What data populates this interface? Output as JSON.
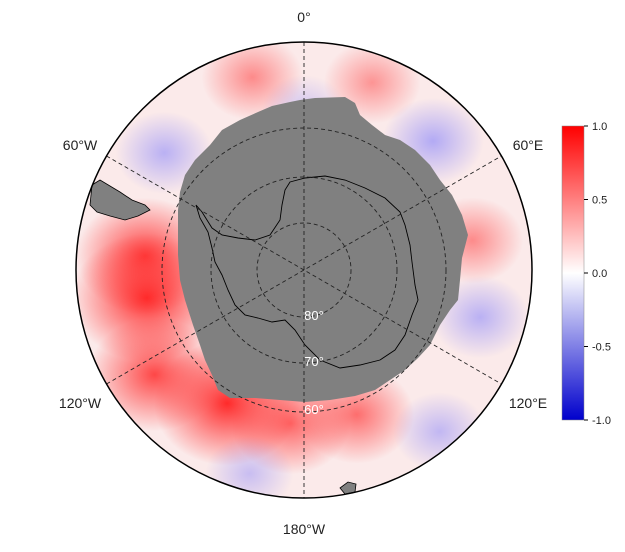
{
  "map": {
    "projection": "south-polar-stereographic",
    "center_latitude": -90,
    "outer_latitude": -50,
    "land_color": "#808080",
    "longitude_labels": {
      "top": "0°",
      "upper_right": "60°E",
      "lower_right": "120°E",
      "bottom": "180°W",
      "lower_left": "120°W",
      "upper_left": "60°W"
    },
    "latitude_labels": [
      "80°",
      "70°",
      "60°"
    ],
    "graticule_latitudes": [
      -80,
      -70,
      -60
    ],
    "graticule_longitudes": [
      0,
      60,
      120
    ],
    "anomaly_regions": [
      {
        "lon": -150,
        "lat": -63,
        "value": 0.85
      },
      {
        "lon": -125,
        "lat": -58,
        "value": 0.7
      },
      {
        "lon": -100,
        "lat": -62,
        "value": 0.9
      },
      {
        "lon": -85,
        "lat": -62,
        "value": 0.75
      },
      {
        "lon": -175,
        "lat": -63,
        "value": 0.55
      },
      {
        "lon": 160,
        "lat": -63,
        "value": 0.5
      },
      {
        "lon": -15,
        "lat": -55,
        "value": 0.35
      },
      {
        "lon": 20,
        "lat": -55,
        "value": 0.3
      },
      {
        "lon": 45,
        "lat": -58,
        "value": -0.35
      },
      {
        "lon": -50,
        "lat": -58,
        "value": -0.3
      },
      {
        "lon": 80,
        "lat": -60,
        "value": 0.35
      },
      {
        "lon": 105,
        "lat": -58,
        "value": -0.3
      },
      {
        "lon": 140,
        "lat": -53,
        "value": -0.25
      },
      {
        "lon": -165,
        "lat": -53,
        "value": -0.2
      },
      {
        "lon": 0,
        "lat": -62,
        "value": -0.15
      }
    ]
  },
  "colorbar": {
    "min": -1.0,
    "max": 1.0,
    "tick_labels": [
      "1.0",
      "0.5",
      "0.0",
      "-0.5",
      "-1.0"
    ],
    "colors": [
      "#ff0000",
      "#ffffff",
      "#0000ff"
    ]
  }
}
